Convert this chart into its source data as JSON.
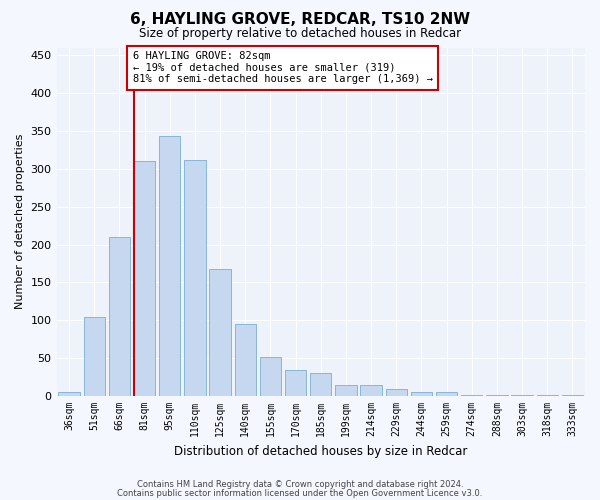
{
  "title": "6, HAYLING GROVE, REDCAR, TS10 2NW",
  "subtitle": "Size of property relative to detached houses in Redcar",
  "xlabel": "Distribution of detached houses by size in Redcar",
  "ylabel": "Number of detached properties",
  "categories": [
    "36sqm",
    "51sqm",
    "66sqm",
    "81sqm",
    "95sqm",
    "110sqm",
    "125sqm",
    "140sqm",
    "155sqm",
    "170sqm",
    "185sqm",
    "199sqm",
    "214sqm",
    "229sqm",
    "244sqm",
    "259sqm",
    "274sqm",
    "288sqm",
    "303sqm",
    "318sqm",
    "333sqm"
  ],
  "values": [
    6,
    104,
    210,
    310,
    343,
    312,
    168,
    95,
    52,
    35,
    30,
    15,
    15,
    9,
    5,
    5,
    1,
    1,
    1,
    1,
    1
  ],
  "bar_color": "#c5d8f0",
  "bar_edge_color": "#7aafd4",
  "vline_color": "#cc0000",
  "vline_index": 3,
  "ylim": [
    0,
    460
  ],
  "yticks": [
    0,
    50,
    100,
    150,
    200,
    250,
    300,
    350,
    400,
    450
  ],
  "annotation_title": "6 HAYLING GROVE: 82sqm",
  "annotation_line1": "← 19% of detached houses are smaller (319)",
  "annotation_line2": "81% of semi-detached houses are larger (1,369) →",
  "annotation_box_color": "#ffffff",
  "annotation_box_edge": "#cc0000",
  "bg_color": "#eef2fb",
  "grid_color": "#ffffff",
  "fig_bg": "#f5f7ff",
  "footer1": "Contains HM Land Registry data © Crown copyright and database right 2024.",
  "footer2": "Contains public sector information licensed under the Open Government Licence v3.0."
}
